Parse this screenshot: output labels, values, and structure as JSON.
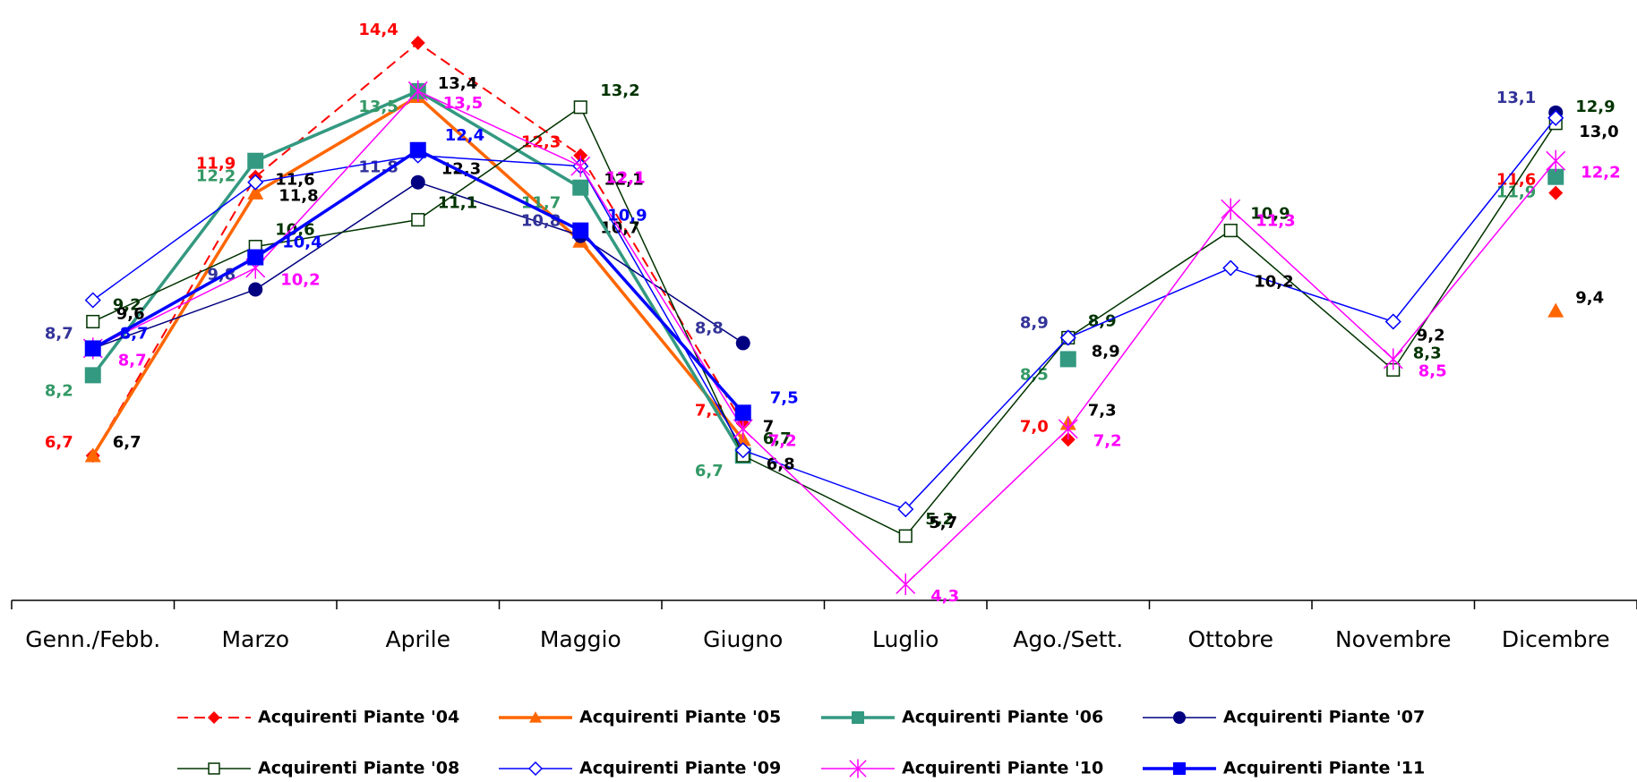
{
  "chart_data": {
    "type": "line",
    "categories": [
      "Genn./Febb.",
      "Marzo",
      "Aprile",
      "Maggio",
      "Giugno",
      "Luglio",
      "Ago./Sett.",
      "Ottobre",
      "Novembre",
      "Dicembre"
    ],
    "ylim": [
      4,
      15.2
    ],
    "legend": "bottom",
    "series": [
      {
        "name": "Acquirenti Piante '04",
        "color": "#ff0000",
        "label_color": "#ff0000",
        "marker": "diamond",
        "dash": true,
        "width": 2,
        "values": [
          6.7,
          11.9,
          14.4,
          12.3,
          7.3,
          null,
          7.0,
          null,
          null,
          11.6
        ],
        "value_labels": [
          "6,7",
          "11,9",
          "14,4",
          "12,3",
          "7,3",
          null,
          "7,0",
          null,
          null,
          "11,6"
        ]
      },
      {
        "name": "Acquirenti Piante '05",
        "color": "#ff6600",
        "label_color": "#000000",
        "marker": "triangle",
        "dash": false,
        "width": 3.5,
        "values": [
          6.7,
          11.6,
          13.4,
          10.7,
          7,
          null,
          7.3,
          null,
          null,
          9.4
        ],
        "value_labels": [
          "6,7",
          "11,6",
          "13,4",
          "10,7",
          "7",
          null,
          "7,3",
          null,
          null,
          "9,4"
        ]
      },
      {
        "name": "Acquirenti Piante '06",
        "color": "#339980",
        "label_color": "#339966",
        "marker": "square",
        "dash": false,
        "width": 3.5,
        "values": [
          8.2,
          12.2,
          13.5,
          11.7,
          6.7,
          null,
          8.5,
          null,
          null,
          11.9
        ],
        "value_labels": [
          "8,2",
          "12,2",
          "13,5",
          "11,7",
          "6,7",
          null,
          "8,5",
          null,
          null,
          "11,9"
        ]
      },
      {
        "name": "Acquirenti Piante '07",
        "color": "#000080",
        "label_color": "#333399",
        "marker": "circle",
        "dash": false,
        "width": 1.5,
        "values": [
          8.7,
          9.8,
          11.8,
          10.8,
          8.8,
          null,
          8.9,
          null,
          null,
          13.1
        ],
        "value_labels": [
          "8,7",
          "9,8",
          "11,8",
          "10,8",
          "8,8",
          null,
          "8,9",
          null,
          null,
          "13,1"
        ]
      },
      {
        "name": "Acquirenti Piante '08",
        "color": "#003300",
        "label_color": "#003300",
        "marker": "square-open",
        "dash": false,
        "width": 1.5,
        "values": [
          9.2,
          10.6,
          11.1,
          13.2,
          6.7,
          5.2,
          8.9,
          10.9,
          8.3,
          12.9
        ],
        "value_labels": [
          "9,2",
          "10,6",
          "11,1",
          "13,2",
          "6,7",
          "5,2",
          "8,9",
          "10,9",
          "8,3",
          "12,9"
        ]
      },
      {
        "name": "Acquirenti Piante '09",
        "color": "#0000ff",
        "label_color": "#000000",
        "marker": "diamond-open",
        "dash": false,
        "width": 1.5,
        "values": [
          9.6,
          11.8,
          12.3,
          12.1,
          6.8,
          5.7,
          8.9,
          10.2,
          9.2,
          13.0
        ],
        "value_labels": [
          "9,6",
          "11,8",
          "12,3",
          "12,1",
          "6,8",
          "5,7",
          "8,9",
          "10,2",
          "9,2",
          "13,0"
        ]
      },
      {
        "name": "Acquirenti Piante '10",
        "color": "#ff00ff",
        "label_color": "#ff00ff",
        "marker": "star",
        "dash": false,
        "width": 1.5,
        "values": [
          8.7,
          10.2,
          13.5,
          12.1,
          7.2,
          4.3,
          7.2,
          11.3,
          8.5,
          12.2
        ],
        "value_labels": [
          "8,7",
          "10,2",
          "13,5",
          "12,1",
          "7,2",
          "4,3",
          "7,2",
          "11,3",
          "8,5",
          "12,2"
        ]
      },
      {
        "name": "Acquirenti Piante '11",
        "color": "#0000ff",
        "label_color": "#0000ff",
        "marker": "square",
        "dash": false,
        "width": 3.5,
        "values": [
          8.7,
          10.4,
          12.4,
          10.9,
          7.5,
          null,
          null,
          null,
          null,
          null
        ],
        "value_labels": [
          "8,7",
          "10,4",
          "12,4",
          "10,9",
          "7,5",
          null,
          null,
          null,
          null,
          null
        ]
      }
    ]
  }
}
